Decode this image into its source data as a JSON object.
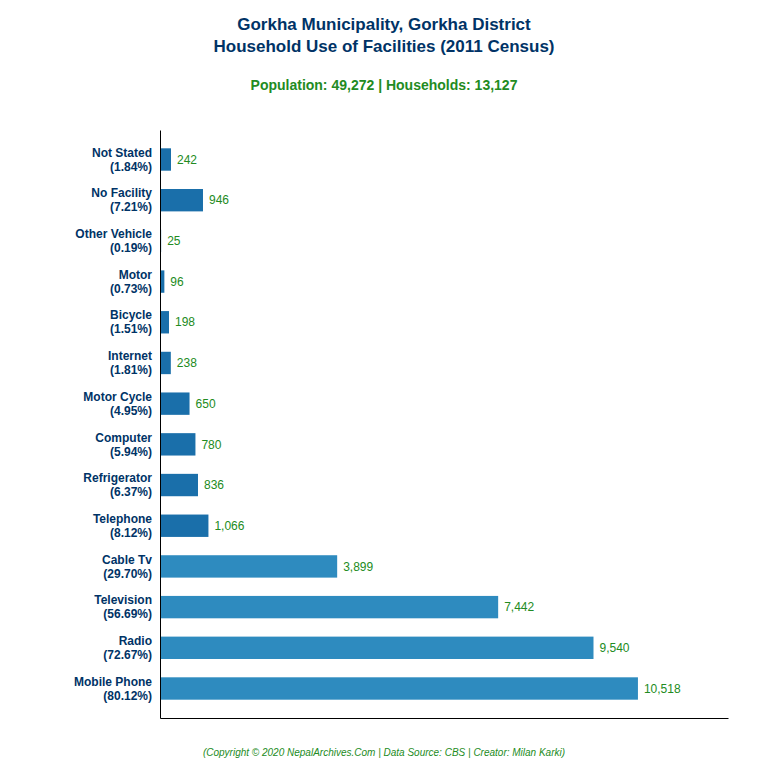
{
  "chart_data": {
    "type": "bar",
    "orientation": "horizontal",
    "title": "Gorkha Municipality, Gorkha District\nHousehold Use of Facilities (2011 Census)",
    "subtitle": "Population: 49,272 | Households: 13,127",
    "annotations": [
      "(Copyright © 2020 NepalArchives.Com | Data Source: CBS | Creator: Milan Karki)"
    ],
    "categories": [
      "Not Stated\n(1.84%)",
      "No Facility\n(7.21%)",
      "Other Vehicle\n(0.19%)",
      "Motor\n(0.73%)",
      "Bicycle\n(1.51%)",
      "Internet\n(1.81%)",
      "Motor Cycle\n(4.95%)",
      "Computer\n(5.94%)",
      "Refrigerator\n(6.37%)",
      "Telephone\n(8.12%)",
      "Cable Tv\n(29.70%)",
      "Television\n(56.69%)",
      "Radio\n(72.67%)",
      "Mobile Phone\n(80.12%)"
    ],
    "values": [
      242,
      946,
      25,
      96,
      198,
      238,
      650,
      780,
      836,
      1066,
      3899,
      7442,
      9540,
      10518
    ],
    "value_labels": [
      "242",
      "946",
      "25",
      "96",
      "198",
      "238",
      "650",
      "780",
      "836",
      "1,066",
      "3,899",
      "7,442",
      "9,540",
      "10,518"
    ],
    "colors": [
      "#1a6faa",
      "#1a6faa",
      "#1a6faa",
      "#1a6faa",
      "#1a6faa",
      "#1a6faa",
      "#1a6faa",
      "#1a6faa",
      "#1a6faa",
      "#1a6faa",
      "#2e8bbf",
      "#2e8bbf",
      "#2e8bbf",
      "#2e8bbf"
    ],
    "xlim": [
      0,
      12500
    ],
    "data_labels": true,
    "tick_labels": "y",
    "grid": false
  }
}
